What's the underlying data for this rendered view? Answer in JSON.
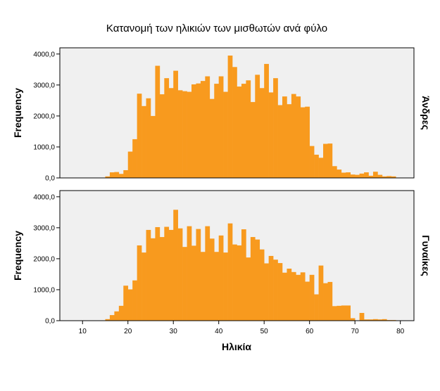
{
  "colors": {
    "bar": "#f89a1e",
    "panel_bg": "#f0f0f0",
    "frame": "#000000"
  },
  "chart_data": {
    "type": "bar",
    "title": "Κατανομή των ηλικιών των μισθωτών ανά φύλο",
    "xlabel": "Ηλικία",
    "ylabel": "Frequency",
    "xlim": [
      5,
      83
    ],
    "x_ticks": [
      "10",
      "20",
      "30",
      "40",
      "50",
      "60",
      "70",
      "80"
    ],
    "x_tick_values": [
      10,
      20,
      30,
      40,
      50,
      60,
      70,
      80
    ],
    "ylim": [
      0,
      4200
    ],
    "y_ticks": [
      "0,0",
      "1000,0",
      "2000,0",
      "3000,0",
      "4000,0"
    ],
    "y_tick_values": [
      0,
      1000,
      2000,
      3000,
      4000
    ],
    "bin_width": 1,
    "bin_start": [
      15,
      16,
      17,
      18,
      19,
      20,
      21,
      22,
      23,
      24,
      25,
      26,
      27,
      28,
      29,
      30,
      31,
      32,
      33,
      34,
      35,
      36,
      37,
      38,
      39,
      40,
      41,
      42,
      43,
      44,
      45,
      46,
      47,
      48,
      49,
      50,
      51,
      52,
      53,
      54,
      55,
      56,
      57,
      58,
      59,
      60,
      61,
      62,
      63,
      64,
      65,
      66,
      67,
      68,
      69,
      70,
      71,
      72,
      73,
      74,
      75,
      76,
      77,
      78,
      79
    ],
    "panels": [
      {
        "label": "Άνδρες",
        "values": [
          50,
          180,
          190,
          130,
          250,
          850,
          1250,
          2720,
          2320,
          2570,
          2000,
          3620,
          2700,
          3220,
          2900,
          3460,
          2830,
          2800,
          2780,
          3020,
          3050,
          3130,
          3280,
          2550,
          3040,
          3280,
          2780,
          3950,
          3580,
          2950,
          3040,
          3150,
          2450,
          3330,
          2900,
          3680,
          2760,
          3220,
          2350,
          2630,
          2380,
          2710,
          2630,
          2280,
          2300,
          1030,
          750,
          650,
          1100,
          1110,
          380,
          270,
          170,
          180,
          110,
          100,
          140,
          180,
          70,
          200,
          100,
          50,
          60,
          50,
          0
        ]
      },
      {
        "label": "Γυναίκες",
        "values": [
          50,
          180,
          300,
          480,
          1130,
          1010,
          1300,
          2430,
          2200,
          2930,
          2660,
          3020,
          2700,
          3030,
          2930,
          3580,
          2980,
          2380,
          3050,
          2420,
          2960,
          2220,
          3050,
          2650,
          2220,
          2750,
          2200,
          3140,
          2460,
          2430,
          2950,
          2040,
          2700,
          2620,
          2300,
          1850,
          2090,
          1970,
          1860,
          1550,
          1680,
          1570,
          1480,
          1560,
          1260,
          1480,
          850,
          1780,
          1210,
          1250,
          470,
          480,
          490,
          490,
          80,
          0,
          250,
          40,
          40,
          50,
          40,
          50,
          20,
          20,
          0
        ]
      }
    ]
  }
}
